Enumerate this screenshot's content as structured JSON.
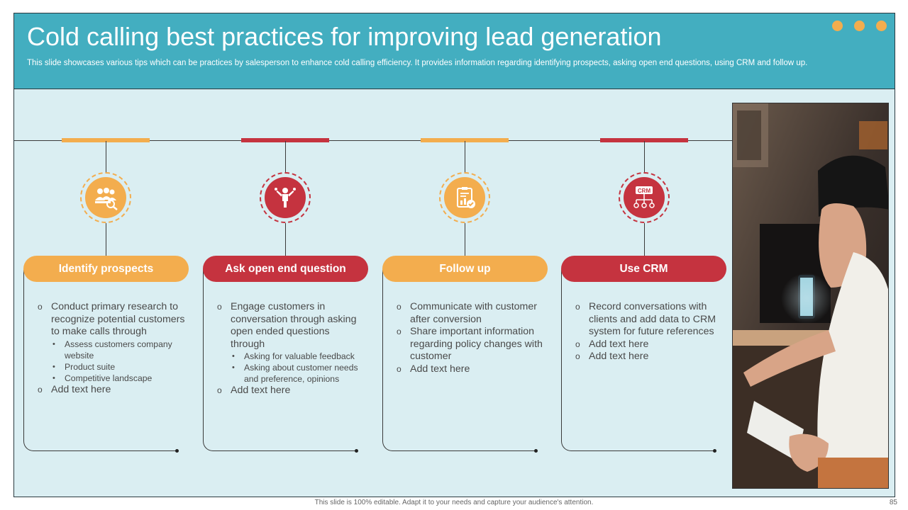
{
  "header": {
    "title": "Cold calling best practices for improving lead generation",
    "subtitle": "This slide showcases various tips which can be practices by salesperson to enhance cold calling efficiency. It provides information regarding identifying prospects, asking open end questions, using CRM and follow up."
  },
  "colors": {
    "header": "#43aec0",
    "background": "#daeef2",
    "orange": "#f3ad4e",
    "red": "#c5333f"
  },
  "columns": [
    {
      "title": "Identify prospects",
      "icon": "team-search-icon",
      "color": "#f3ad4e",
      "items": [
        {
          "text": "Conduct primary research to recognize potential customers to make calls through",
          "sub": [
            "Assess customers company website",
            "Product suite",
            "Competitive landscape"
          ]
        },
        {
          "text": "Add text here"
        }
      ]
    },
    {
      "title": "Ask open end question",
      "icon": "presenter-icon",
      "color": "#c5333f",
      "items": [
        {
          "text": "Engage customers in conversation through asking open ended questions through",
          "sub": [
            "Asking for valuable feedback",
            "Asking about customer needs and preference, opinions"
          ]
        },
        {
          "text": "Add text here"
        }
      ]
    },
    {
      "title": "Follow up",
      "icon": "clipboard-chart-icon",
      "color": "#f3ad4e",
      "items": [
        {
          "text": "Communicate with customer after conversion"
        },
        {
          "text": "Share important information regarding policy changes with customer"
        },
        {
          "text": "Add text here"
        }
      ]
    },
    {
      "title": "Use CRM",
      "icon": "crm-network-icon",
      "color": "#c5333f",
      "items": [
        {
          "text": "Record conversations with clients and add data to CRM system for future references"
        },
        {
          "text": "Add text here"
        },
        {
          "text": "Add text here"
        }
      ]
    }
  ],
  "crm_icon_label": "CRM",
  "footer": {
    "note": "This slide is 100% editable. Adapt it to your needs and capture your audience's attention.",
    "page": "85"
  }
}
